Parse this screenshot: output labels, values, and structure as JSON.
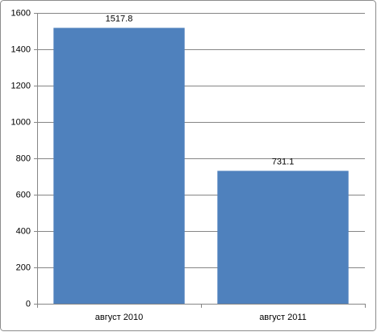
{
  "chart_data": {
    "type": "bar",
    "categories": [
      "август 2010",
      "август 2011"
    ],
    "values": [
      1517.8,
      731.1
    ],
    "color": "#4f81bd",
    "ylim": [
      0,
      1600
    ],
    "yticks": [
      0,
      200,
      400,
      600,
      800,
      1000,
      1200,
      1400,
      1600
    ],
    "grid": true
  }
}
